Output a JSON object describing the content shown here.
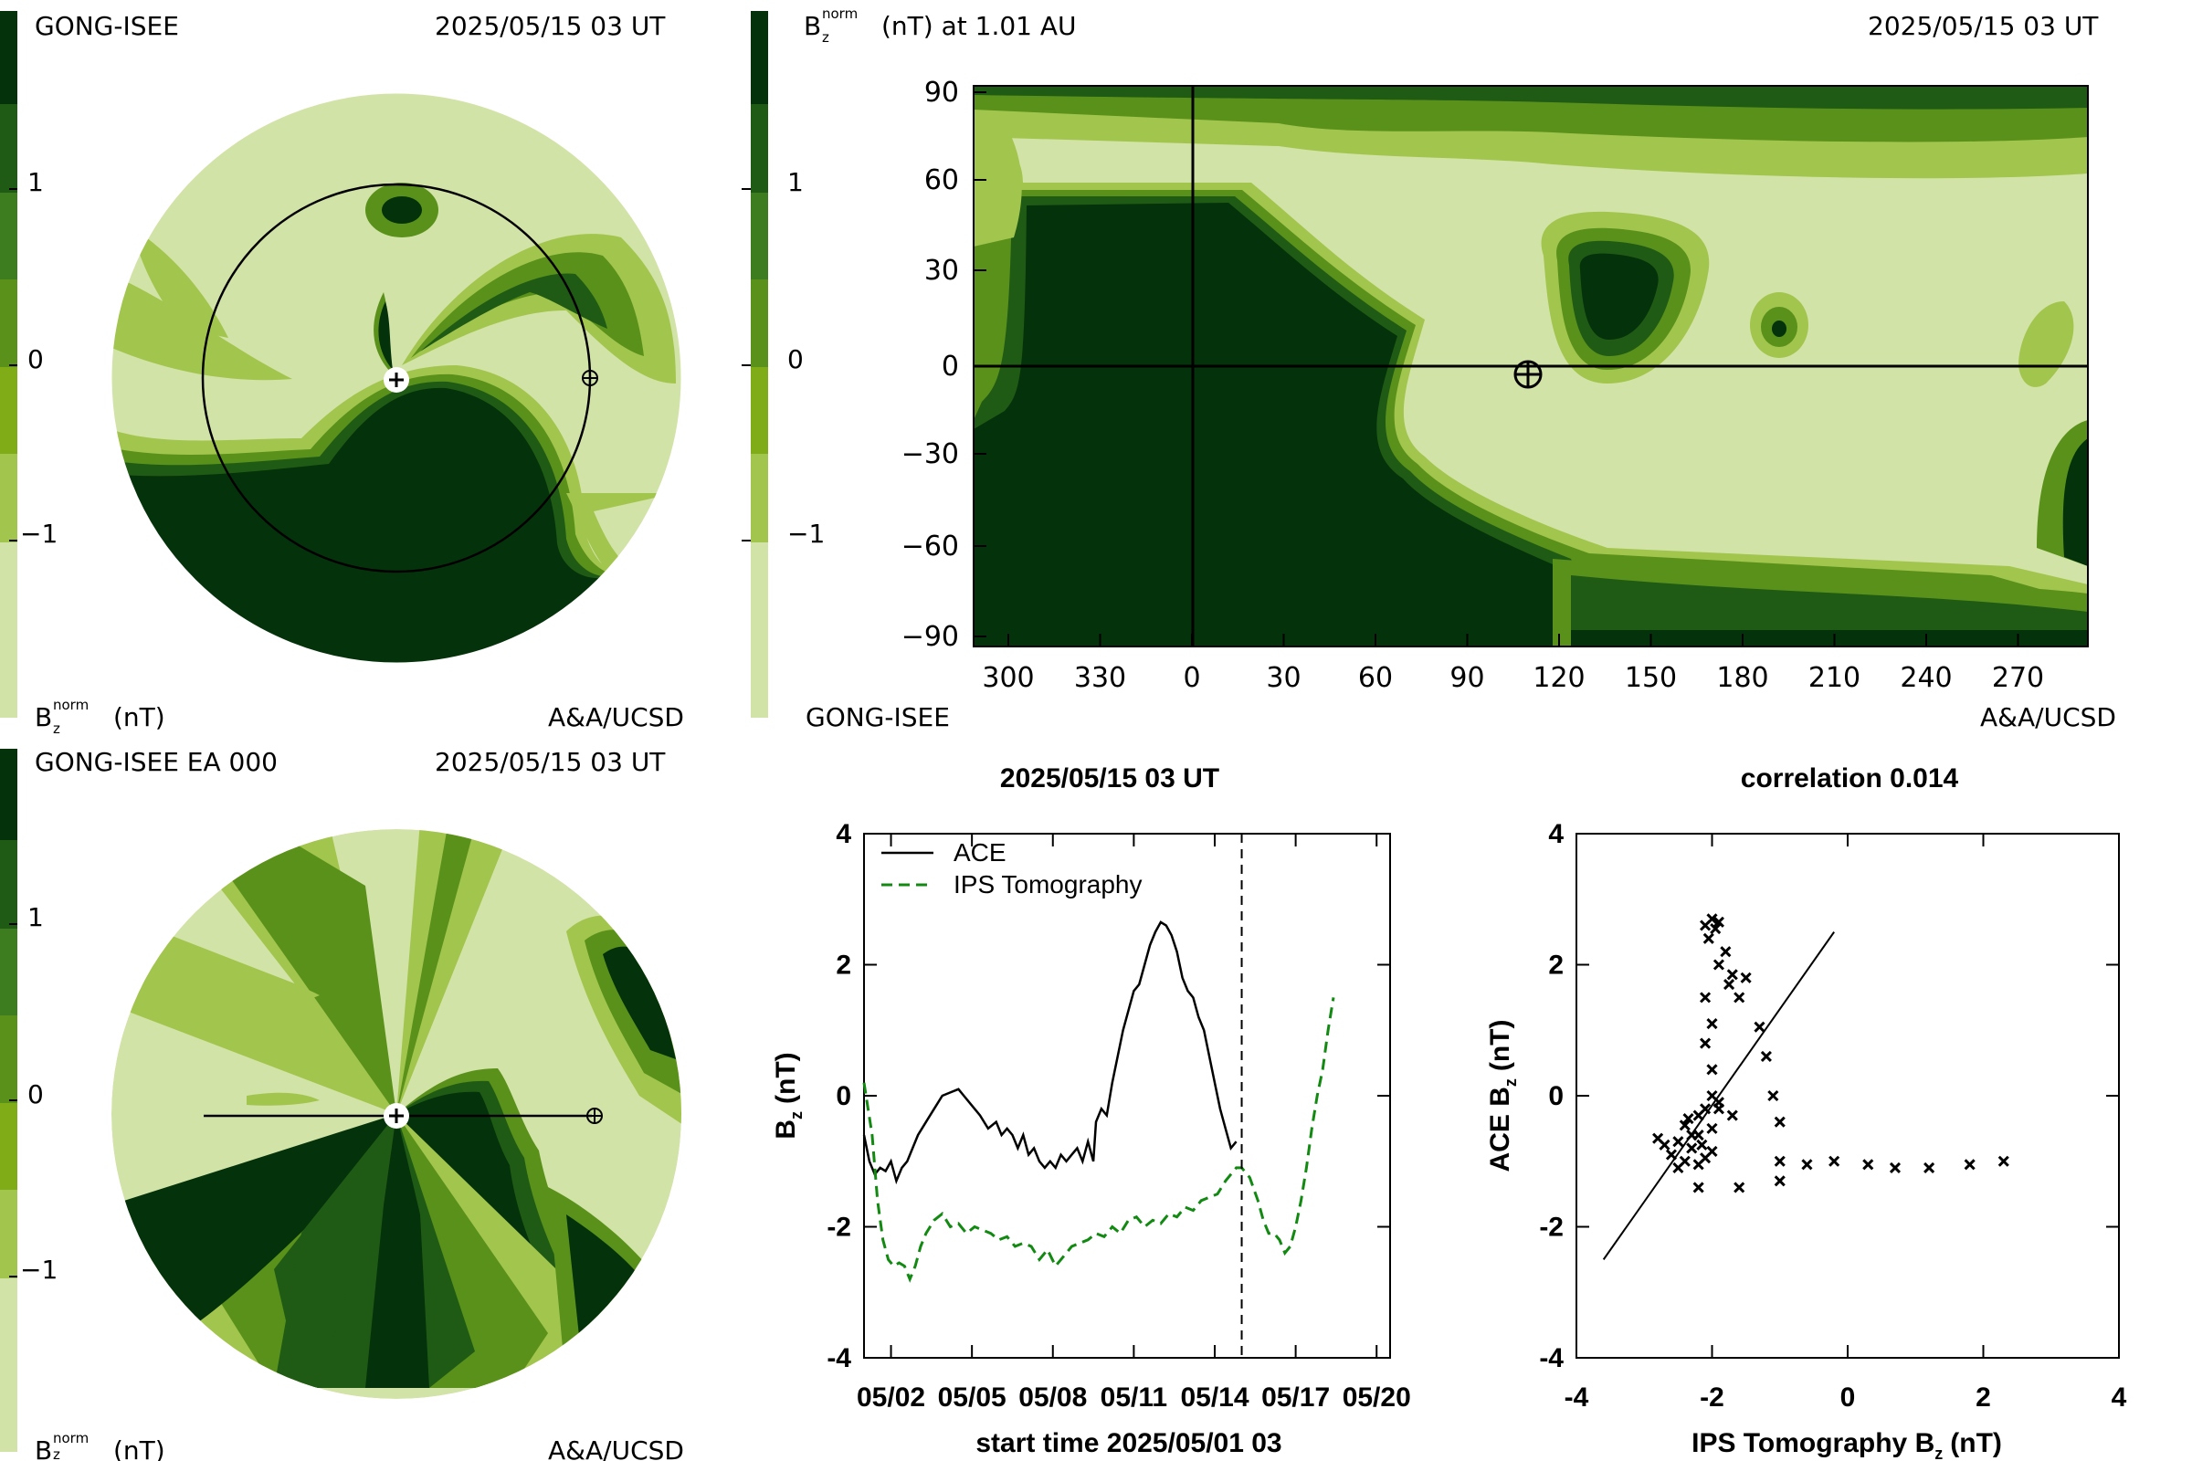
{
  "colors": {
    "level_0": "#d1e3a7",
    "level_1": "#a2c54d",
    "level_2": "#7fac17",
    "level_3": "#5a911a",
    "level_4": "#3e7d1f",
    "level_5": "#1f5b15",
    "level_6": "#04320a",
    "ace_line": "#000000",
    "ips_line": "#128a12"
  },
  "colorbar": {
    "ticks": [
      "1",
      "0",
      "−1"
    ]
  },
  "panel_top_left": {
    "source": "GONG-ISEE",
    "timestamp": "2025/05/15 03 UT",
    "quantity_label": "Bᵣnorm (nT)",
    "quantity_main": "B",
    "quantity_sup": "norm",
    "quantity_sub": "z",
    "quantity_unit": "(nT)",
    "credit": "A&A/UCSD"
  },
  "panel_top_right": {
    "title_main": "B",
    "title_sup": "norm",
    "title_sub": "z",
    "title_rest": "(nT) at 1.01 AU",
    "timestamp": "2025/05/15 03 UT",
    "source": "GONG-ISEE",
    "credit": "A&A/UCSD",
    "y_ticks": [
      "90",
      "60",
      "30",
      "0",
      "−30",
      "−60",
      "−90"
    ],
    "x_ticks": [
      "300",
      "330",
      "0",
      "30",
      "60",
      "90",
      "120",
      "150",
      "180",
      "210",
      "240",
      "270"
    ]
  },
  "panel_bottom_left": {
    "source": "GONG-ISEE EA 000",
    "timestamp": "2025/05/15 03 UT",
    "quantity_main": "B",
    "quantity_sup": "norm",
    "quantity_sub": "z",
    "quantity_unit": "(nT)",
    "credit": "A&A/UCSD"
  },
  "chart_data": [
    {
      "type": "line",
      "title": "2025/05/15 03 UT",
      "xlabel": "start time 2025/05/01 03",
      "ylabel_main": "B",
      "ylabel_sub": "z",
      "ylabel_rest": "(nT)",
      "x_tick_labels": [
        "05/02",
        "05/05",
        "05/08",
        "05/11",
        "05/14",
        "05/17",
        "05/20"
      ],
      "x_tick_days": [
        1,
        4,
        7,
        10,
        13,
        16,
        19
      ],
      "xlim_days": [
        0,
        19.5
      ],
      "y_ticks": [
        "4",
        "2",
        "0",
        "-2",
        "-4"
      ],
      "ylim": [
        -4,
        4
      ],
      "marker_day": 14.0,
      "legend": [
        "ACE",
        "IPS Tomography"
      ],
      "series": [
        {
          "name": "ACE",
          "style": "solid",
          "points": [
            [
              0,
              -0.6
            ],
            [
              0.2,
              -1.0
            ],
            [
              0.4,
              -1.2
            ],
            [
              0.6,
              -1.1
            ],
            [
              0.8,
              -1.15
            ],
            [
              1.0,
              -1.0
            ],
            [
              1.2,
              -1.3
            ],
            [
              1.4,
              -1.1
            ],
            [
              1.6,
              -1.0
            ],
            [
              1.8,
              -0.8
            ],
            [
              2.0,
              -0.6
            ],
            [
              2.3,
              -0.4
            ],
            [
              2.6,
              -0.2
            ],
            [
              2.9,
              0.0
            ],
            [
              3.2,
              0.05
            ],
            [
              3.5,
              0.1
            ],
            [
              3.7,
              0.0
            ],
            [
              4.0,
              -0.15
            ],
            [
              4.3,
              -0.3
            ],
            [
              4.6,
              -0.5
            ],
            [
              4.9,
              -0.4
            ],
            [
              5.1,
              -0.6
            ],
            [
              5.3,
              -0.5
            ],
            [
              5.5,
              -0.6
            ],
            [
              5.7,
              -0.8
            ],
            [
              5.9,
              -0.6
            ],
            [
              6.1,
              -0.9
            ],
            [
              6.3,
              -0.8
            ],
            [
              6.5,
              -1.0
            ],
            [
              6.7,
              -1.1
            ],
            [
              6.9,
              -1.0
            ],
            [
              7.1,
              -1.1
            ],
            [
              7.3,
              -0.9
            ],
            [
              7.5,
              -1.0
            ],
            [
              7.7,
              -0.9
            ],
            [
              7.9,
              -0.8
            ],
            [
              8.1,
              -1.0
            ],
            [
              8.3,
              -0.7
            ],
            [
              8.5,
              -1.0
            ],
            [
              8.6,
              -0.4
            ],
            [
              8.8,
              -0.2
            ],
            [
              9.0,
              -0.3
            ],
            [
              9.2,
              0.2
            ],
            [
              9.4,
              0.6
            ],
            [
              9.6,
              1.0
            ],
            [
              9.8,
              1.3
            ],
            [
              10.0,
              1.6
            ],
            [
              10.2,
              1.7
            ],
            [
              10.4,
              2.0
            ],
            [
              10.6,
              2.3
            ],
            [
              10.8,
              2.5
            ],
            [
              11.0,
              2.65
            ],
            [
              11.2,
              2.6
            ],
            [
              11.4,
              2.45
            ],
            [
              11.6,
              2.2
            ],
            [
              11.8,
              1.8
            ],
            [
              12.0,
              1.6
            ],
            [
              12.2,
              1.5
            ],
            [
              12.4,
              1.2
            ],
            [
              12.6,
              1.0
            ],
            [
              12.8,
              0.6
            ],
            [
              13.0,
              0.2
            ],
            [
              13.2,
              -0.2
            ],
            [
              13.4,
              -0.5
            ],
            [
              13.6,
              -0.8
            ],
            [
              13.8,
              -0.7
            ]
          ]
        },
        {
          "name": "IPS Tomography",
          "style": "dashed",
          "points": [
            [
              0.0,
              0.2
            ],
            [
              0.3,
              -0.6
            ],
            [
              0.5,
              -1.6
            ],
            [
              0.7,
              -2.2
            ],
            [
              0.9,
              -2.5
            ],
            [
              1.1,
              -2.6
            ],
            [
              1.3,
              -2.55
            ],
            [
              1.5,
              -2.6
            ],
            [
              1.7,
              -2.8
            ],
            [
              1.9,
              -2.6
            ],
            [
              2.1,
              -2.3
            ],
            [
              2.3,
              -2.1
            ],
            [
              2.6,
              -1.9
            ],
            [
              2.9,
              -1.8
            ],
            [
              3.2,
              -2.0
            ],
            [
              3.5,
              -1.95
            ],
            [
              3.8,
              -2.1
            ],
            [
              4.1,
              -2.0
            ],
            [
              4.4,
              -2.05
            ],
            [
              4.7,
              -2.1
            ],
            [
              5.0,
              -2.2
            ],
            [
              5.3,
              -2.15
            ],
            [
              5.6,
              -2.3
            ],
            [
              5.9,
              -2.25
            ],
            [
              6.2,
              -2.3
            ],
            [
              6.5,
              -2.5
            ],
            [
              6.8,
              -2.35
            ],
            [
              7.1,
              -2.6
            ],
            [
              7.4,
              -2.45
            ],
            [
              7.7,
              -2.3
            ],
            [
              8.0,
              -2.25
            ],
            [
              8.3,
              -2.2
            ],
            [
              8.6,
              -2.1
            ],
            [
              8.9,
              -2.15
            ],
            [
              9.2,
              -2.0
            ],
            [
              9.5,
              -2.1
            ],
            [
              9.8,
              -1.9
            ],
            [
              10.1,
              -1.85
            ],
            [
              10.4,
              -2.0
            ],
            [
              10.7,
              -1.9
            ],
            [
              11.0,
              -1.95
            ],
            [
              11.3,
              -1.8
            ],
            [
              11.6,
              -1.85
            ],
            [
              11.9,
              -1.7
            ],
            [
              12.2,
              -1.75
            ],
            [
              12.5,
              -1.6
            ],
            [
              12.8,
              -1.55
            ],
            [
              13.1,
              -1.5
            ],
            [
              13.4,
              -1.3
            ],
            [
              13.6,
              -1.2
            ],
            [
              13.8,
              -1.1
            ],
            [
              14.0,
              -1.1
            ],
            [
              14.3,
              -1.25
            ],
            [
              14.6,
              -1.6
            ],
            [
              14.8,
              -1.9
            ],
            [
              15.0,
              -2.1
            ],
            [
              15.2,
              -2.1
            ],
            [
              15.4,
              -2.2
            ],
            [
              15.6,
              -2.4
            ],
            [
              15.8,
              -2.3
            ],
            [
              16.0,
              -2.0
            ],
            [
              16.2,
              -1.6
            ],
            [
              16.4,
              -1.1
            ],
            [
              16.6,
              -0.5
            ],
            [
              16.8,
              0.0
            ],
            [
              17.0,
              0.4
            ],
            [
              17.2,
              1.0
            ],
            [
              17.4,
              1.5
            ]
          ]
        }
      ]
    },
    {
      "type": "scatter",
      "title": "correlation 0.014",
      "xlabel_main": "IPS Tomography B",
      "xlabel_sub": "z",
      "xlabel_rest": "(nT)",
      "ylabel_main": "ACE B",
      "ylabel_sub": "z",
      "ylabel_rest": "(nT)",
      "x_ticks": [
        "-4",
        "-2",
        "0",
        "2",
        "4"
      ],
      "y_ticks": [
        "4",
        "2",
        "0",
        "-2",
        "-4"
      ],
      "xlim": [
        -4,
        4
      ],
      "ylim": [
        -4,
        4
      ],
      "fit_line": [
        [
          -3.6,
          -2.5
        ],
        [
          -0.2,
          2.5
        ]
      ],
      "points": [
        [
          -2.0,
          2.7
        ],
        [
          -1.9,
          2.65
        ],
        [
          -2.1,
          2.6
        ],
        [
          -1.95,
          2.55
        ],
        [
          -2.05,
          2.4
        ],
        [
          -1.8,
          2.2
        ],
        [
          -1.9,
          2.0
        ],
        [
          -1.7,
          1.85
        ],
        [
          -1.5,
          1.8
        ],
        [
          -1.75,
          1.7
        ],
        [
          -2.1,
          1.5
        ],
        [
          -1.6,
          1.5
        ],
        [
          -2.0,
          1.1
        ],
        [
          -1.3,
          1.05
        ],
        [
          -2.1,
          0.8
        ],
        [
          -1.2,
          0.6
        ],
        [
          -2.0,
          0.4
        ],
        [
          -1.1,
          0.0
        ],
        [
          -1.9,
          -0.2
        ],
        [
          -2.2,
          -0.3
        ],
        [
          -1.0,
          -0.4
        ],
        [
          -2.0,
          -0.5
        ],
        [
          -2.4,
          -0.45
        ],
        [
          -2.2,
          -0.6
        ],
        [
          -2.5,
          -0.7
        ],
        [
          -2.7,
          -0.75
        ],
        [
          -2.3,
          -0.8
        ],
        [
          -2.0,
          -0.85
        ],
        [
          -2.6,
          -0.9
        ],
        [
          -2.1,
          -0.95
        ],
        [
          -2.4,
          -1.0
        ],
        [
          -2.2,
          -1.05
        ],
        [
          -2.5,
          -1.1
        ],
        [
          -2.3,
          -0.6
        ],
        [
          -2.1,
          -0.2
        ],
        [
          -1.9,
          -0.1
        ],
        [
          -2.0,
          0.0
        ],
        [
          -1.7,
          -0.3
        ],
        [
          -1.0,
          -1.0
        ],
        [
          -0.6,
          -1.05
        ],
        [
          -0.2,
          -1.0
        ],
        [
          0.3,
          -1.05
        ],
        [
          0.7,
          -1.1
        ],
        [
          1.2,
          -1.1
        ],
        [
          1.8,
          -1.05
        ],
        [
          2.3,
          -1.0
        ],
        [
          -1.0,
          -1.3
        ],
        [
          -1.6,
          -1.4
        ],
        [
          -2.2,
          -1.4
        ],
        [
          -2.8,
          -0.65
        ],
        [
          -2.35,
          -0.35
        ],
        [
          -2.15,
          -0.75
        ]
      ]
    }
  ]
}
